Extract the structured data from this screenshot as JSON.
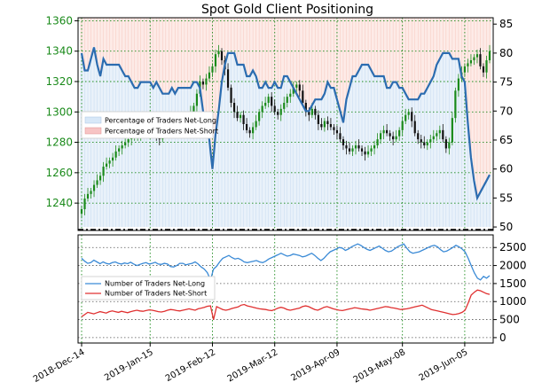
{
  "chart_data": [
    {
      "type": "candlestick-area",
      "title": "Spot Gold Client Positioning",
      "left_axis": {
        "ticks": [
          1240,
          1260,
          1280,
          1300,
          1320,
          1340,
          1360
        ],
        "range": [
          1222,
          1362
        ]
      },
      "right_axis": {
        "ticks": [
          50,
          55,
          60,
          65,
          70,
          75,
          80,
          85
        ],
        "range": [
          49.4,
          86.1
        ]
      },
      "x_tick_labels": [
        "2018-Dec-14",
        "2019-Jan-15",
        "2019-Feb-12",
        "2019-Mar-12",
        "2019-Apr-09",
        "2019-May-08",
        "2019-Jun-05"
      ],
      "x_tick_index": [
        0,
        22,
        42,
        62,
        82,
        103,
        123
      ],
      "grid": true,
      "legend": {
        "placement": "center-left",
        "entries": [
          "Percentage of Traders Net-Long",
          "Percentage of Traders Net-Short"
        ]
      },
      "net_long_pct": [
        80,
        77,
        77,
        79,
        81,
        78,
        76,
        79,
        78,
        78,
        78,
        78,
        78,
        77,
        76,
        76,
        75,
        74,
        74,
        75,
        75,
        75,
        75,
        74,
        75,
        74,
        73,
        73,
        73,
        74,
        73,
        74,
        74,
        74,
        74,
        74,
        75,
        75,
        74,
        70,
        68,
        65,
        60,
        66,
        70,
        75,
        78,
        80,
        80,
        80,
        78,
        78,
        78,
        76,
        76,
        77,
        76,
        74,
        74,
        75,
        74,
        74,
        75,
        74,
        74,
        76,
        76,
        75,
        74,
        73,
        72,
        71,
        70,
        70,
        71,
        72,
        72,
        72,
        73,
        75,
        74,
        74,
        72,
        70,
        68,
        72,
        74,
        76,
        76,
        77,
        78,
        78,
        78,
        77,
        76,
        76,
        76,
        76,
        74,
        74,
        75,
        75,
        74,
        74,
        73,
        72,
        72,
        72,
        72,
        73,
        73,
        74,
        75,
        76,
        78,
        79,
        80,
        80,
        80,
        79,
        79,
        79,
        76,
        75,
        68,
        62,
        58,
        55,
        56,
        57,
        58,
        59
      ],
      "price_close": [
        1236,
        1243,
        1246,
        1248,
        1252,
        1255,
        1258,
        1264,
        1266,
        1268,
        1270,
        1274,
        1276,
        1278,
        1280,
        1282,
        1283,
        1284,
        1285,
        1286,
        1287,
        1289,
        1290,
        1286,
        1284,
        1282,
        1288,
        1290,
        1292,
        1294,
        1296,
        1290,
        1286,
        1292,
        1296,
        1300,
        1304,
        1312,
        1320,
        1318,
        1322,
        1326,
        1330,
        1338,
        1340,
        1334,
        1328,
        1316,
        1306,
        1300,
        1296,
        1298,
        1292,
        1288,
        1286,
        1290,
        1294,
        1300,
        1304,
        1306,
        1310,
        1304,
        1300,
        1298,
        1302,
        1306,
        1310,
        1312,
        1316,
        1318,
        1314,
        1306,
        1300,
        1298,
        1302,
        1298,
        1292,
        1290,
        1294,
        1292,
        1290,
        1288,
        1286,
        1282,
        1278,
        1276,
        1274,
        1276,
        1278,
        1276,
        1274,
        1272,
        1274,
        1276,
        1278,
        1282,
        1286,
        1288,
        1286,
        1284,
        1282,
        1284,
        1288,
        1294,
        1298,
        1300,
        1294,
        1286,
        1282,
        1280,
        1278,
        1280,
        1282,
        1284,
        1286,
        1288,
        1282,
        1276,
        1280,
        1296,
        1314,
        1322,
        1326,
        1330,
        1332,
        1334,
        1336,
        1338,
        1330,
        1326,
        1334,
        1340
      ]
    },
    {
      "type": "line",
      "right_axis": {
        "ticks": [
          0,
          500,
          1000,
          1500,
          2000,
          2500
        ],
        "range": [
          -150,
          2850
        ]
      },
      "grid": true,
      "legend": {
        "placement": "center-left",
        "entries": [
          "Number of Traders Net-Long",
          "Number of Traders Net-Short"
        ]
      },
      "series": [
        {
          "name": "Number of Traders Net-Long",
          "color": "#3a8ad6",
          "values": [
            2200,
            2120,
            2060,
            2080,
            2150,
            2100,
            2050,
            2100,
            2060,
            2040,
            2080,
            2100,
            2060,
            2040,
            2070,
            2050,
            2090,
            2040,
            2000,
            2030,
            2060,
            2080,
            2040,
            2060,
            2090,
            2040,
            2030,
            2060,
            2040,
            1970,
            1960,
            2000,
            2060,
            2060,
            2020,
            2040,
            2060,
            2100,
            2040,
            1960,
            1900,
            1800,
            1600,
            1900,
            1980,
            2100,
            2200,
            2240,
            2280,
            2220,
            2180,
            2200,
            2160,
            2100,
            2080,
            2100,
            2120,
            2140,
            2100,
            2080,
            2120,
            2180,
            2220,
            2260,
            2300,
            2340,
            2300,
            2260,
            2280,
            2320,
            2300,
            2280,
            2240,
            2260,
            2300,
            2340,
            2280,
            2200,
            2140,
            2200,
            2300,
            2380,
            2420,
            2460,
            2500,
            2480,
            2420,
            2460,
            2520,
            2560,
            2600,
            2560,
            2500,
            2450,
            2420,
            2460,
            2500,
            2540,
            2480,
            2420,
            2380,
            2400,
            2460,
            2520,
            2560,
            2600,
            2480,
            2380,
            2340,
            2360,
            2380,
            2420,
            2460,
            2500,
            2540,
            2560,
            2520,
            2440,
            2380,
            2400,
            2450,
            2500,
            2560,
            2520,
            2460,
            2380,
            2200,
            2000,
            1800,
            1650,
            1600,
            1700,
            1650,
            1720
          ]
        },
        {
          "name": "Number of Traders Net-Short",
          "color": "#e03030",
          "values": [
            580,
            640,
            700,
            680,
            660,
            690,
            720,
            700,
            680,
            720,
            740,
            720,
            700,
            730,
            710,
            690,
            720,
            740,
            760,
            740,
            730,
            750,
            770,
            760,
            740,
            720,
            710,
            730,
            760,
            780,
            770,
            750,
            740,
            760,
            780,
            800,
            780,
            760,
            800,
            820,
            840,
            870,
            880,
            500,
            860,
            820,
            780,
            760,
            780,
            810,
            830,
            850,
            900,
            920,
            880,
            860,
            840,
            820,
            800,
            790,
            780,
            760,
            750,
            780,
            820,
            840,
            820,
            780,
            760,
            780,
            800,
            820,
            860,
            880,
            860,
            820,
            780,
            760,
            800,
            840,
            860,
            830,
            800,
            780,
            760,
            750,
            770,
            790,
            810,
            830,
            820,
            800,
            790,
            780,
            760,
            780,
            800,
            820,
            840,
            860,
            850,
            830,
            820,
            800,
            780,
            790,
            800,
            820,
            840,
            860,
            880,
            900,
            860,
            820,
            780,
            760,
            740,
            720,
            700,
            680,
            660,
            640,
            650,
            670,
            700,
            760,
            960,
            1180,
            1260,
            1320,
            1300,
            1260,
            1220,
            1200
          ]
        }
      ],
      "x_tick_labels": [
        "2018-Dec-14",
        "2019-Jan-15",
        "2019-Feb-12",
        "2019-Mar-12",
        "2019-Apr-09",
        "2019-May-08",
        "2019-Jun-05"
      ]
    }
  ]
}
